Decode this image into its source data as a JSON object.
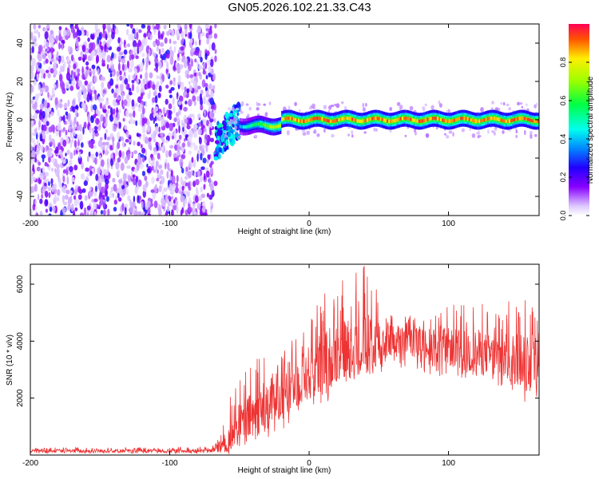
{
  "title": "GN05.2026.102.21.33.C43",
  "chart_data": [
    {
      "type": "heatmap",
      "title": "GN05.2026.102.21.33.C43",
      "xlabel": "Height of straight line (km)",
      "ylabel": "Frequency (Hz)",
      "xlim": [
        -200,
        165
      ],
      "ylim": [
        -50,
        50
      ],
      "xticks": [
        -200,
        -100,
        0,
        100
      ],
      "yticks": [
        -40,
        -20,
        0,
        20,
        40
      ],
      "colorbar": {
        "label": "Normalized spectral amplitude",
        "range": [
          0,
          1
        ],
        "ticks": [
          "0.0",
          "0.2",
          "0.4",
          "0.6",
          "0.8"
        ]
      },
      "regions": [
        {
          "name": "broadband noise",
          "x_range": [
            -200,
            -67
          ],
          "freq_range": [
            -50,
            50
          ],
          "amplitude": 0.15
        },
        {
          "name": "transition burst",
          "x_range": [
            -67,
            -50
          ],
          "freq_range": [
            -20,
            10
          ],
          "amplitude": 0.35
        },
        {
          "name": "narrow signal",
          "x_range": [
            -50,
            165
          ],
          "freq_center": 0,
          "freq_halfwidth": 4,
          "peak_amplitude": 0.95
        }
      ]
    },
    {
      "type": "line",
      "xlabel": "Height of straight line (km)",
      "ylabel": "SNR (10 * v/v)",
      "xlim": [
        -200,
        165
      ],
      "ylim": [
        0,
        6700
      ],
      "xticks": [
        -200,
        -100,
        0,
        100
      ],
      "yticks": [
        2000,
        4000,
        6000
      ],
      "series": [
        {
          "name": "SNR",
          "color": "#ee3333",
          "x": [
            -200,
            -150,
            -100,
            -70,
            -58,
            -50,
            -40,
            -30,
            -20,
            -10,
            0,
            10,
            20,
            30,
            40,
            50,
            60,
            70,
            80,
            90,
            100,
            110,
            120,
            130,
            140,
            150,
            160,
            165
          ],
          "mean": [
            150,
            150,
            150,
            160,
            500,
            1100,
            1400,
            1800,
            2200,
            2500,
            2900,
            3300,
            3600,
            3800,
            3900,
            4000,
            4000,
            4000,
            3900,
            3900,
            3800,
            3700,
            3600,
            3500,
            3400,
            3400,
            3400,
            3400
          ],
          "max": [
            250,
            280,
            280,
            300,
            2200,
            2900,
            3500,
            4000,
            4300,
            4500,
            5000,
            5800,
            6000,
            6600,
            6700,
            5800,
            5000,
            5000,
            4700,
            4900,
            5300,
            5300,
            5700,
            5000,
            5300,
            5700,
            5800,
            5700
          ],
          "min": [
            60,
            60,
            60,
            60,
            100,
            300,
            400,
            600,
            800,
            1200,
            1500,
            1800,
            2000,
            2500,
            2800,
            2700,
            3000,
            3000,
            3000,
            2600,
            2900,
            2700,
            2600,
            2400,
            2200,
            2200,
            1500,
            1500
          ]
        }
      ]
    }
  ]
}
